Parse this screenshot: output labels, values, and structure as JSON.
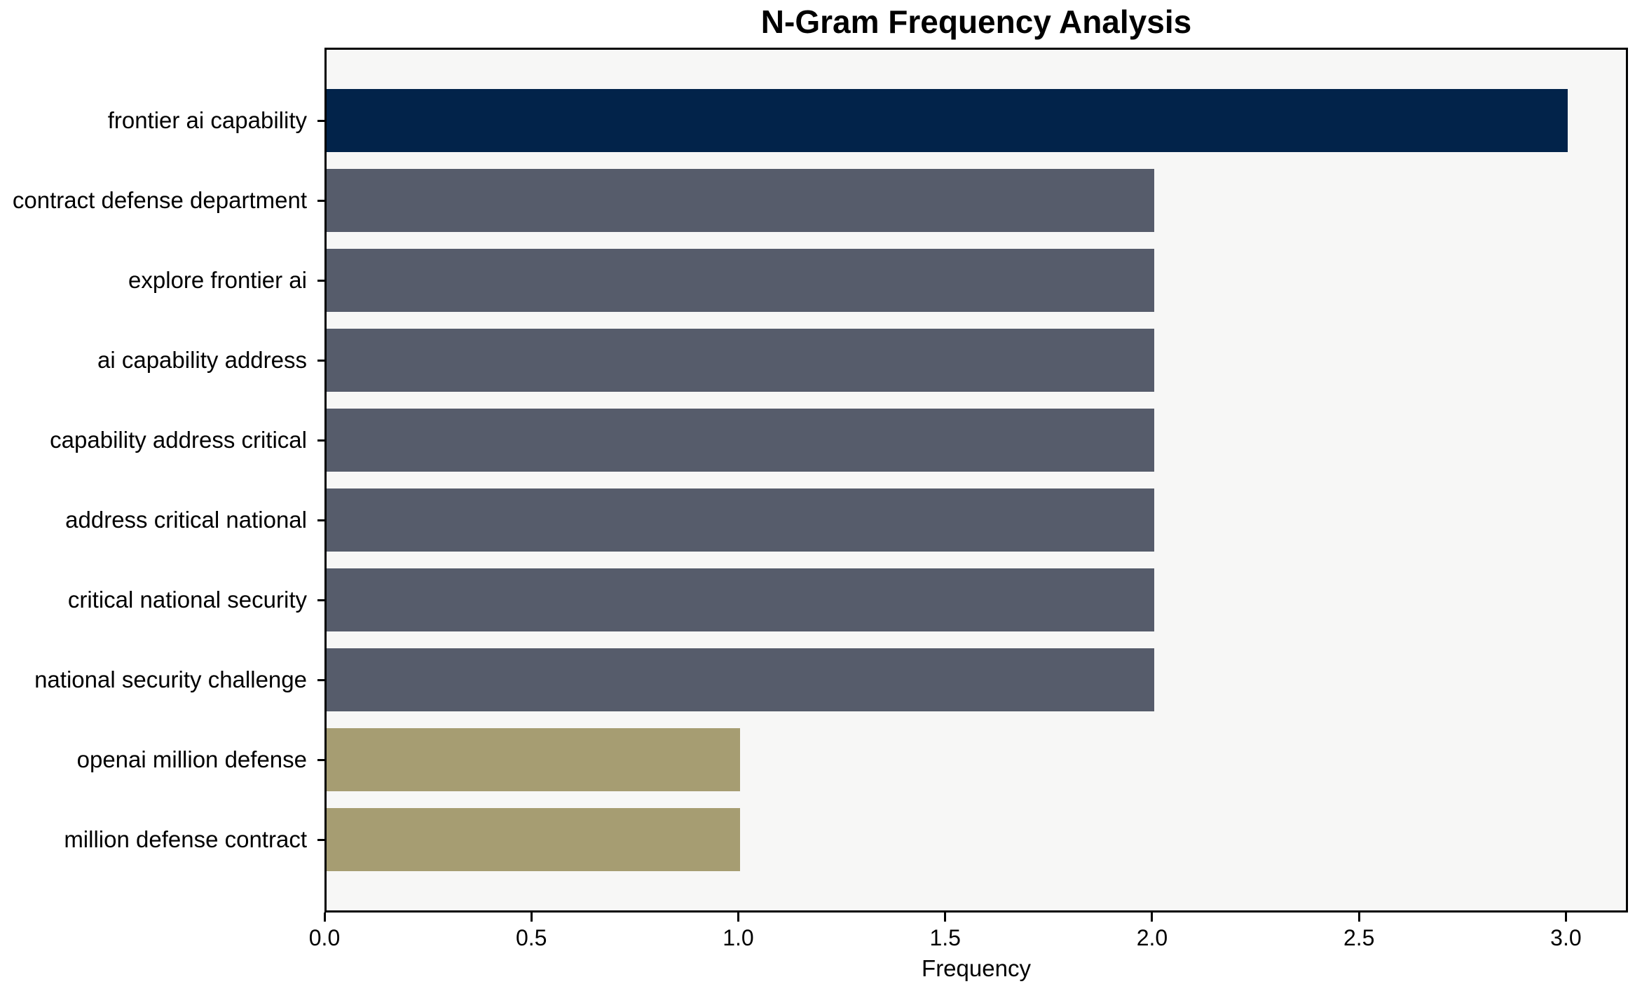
{
  "chart_data": {
    "type": "bar",
    "orientation": "horizontal",
    "title": "N-Gram Frequency Analysis",
    "xlabel": "Frequency",
    "ylabel": "",
    "categories": [
      "frontier ai capability",
      "contract defense department",
      "explore frontier ai",
      "ai capability address",
      "capability address critical",
      "address critical national",
      "critical national security",
      "national security challenge",
      "openai million defense",
      "million defense contract"
    ],
    "values": [
      3,
      2,
      2,
      2,
      2,
      2,
      2,
      2,
      1,
      1
    ],
    "colors": [
      "#02234a",
      "#565c6b",
      "#565c6b",
      "#565c6b",
      "#565c6b",
      "#565c6b",
      "#565c6b",
      "#565c6b",
      "#a69d72",
      "#a69d72"
    ],
    "xlim": [
      0,
      3.15
    ],
    "xticks": [
      {
        "value": 0.0,
        "label": "0.0"
      },
      {
        "value": 0.5,
        "label": "0.5"
      },
      {
        "value": 1.0,
        "label": "1.0"
      },
      {
        "value": 1.5,
        "label": "1.5"
      },
      {
        "value": 2.0,
        "label": "2.0"
      },
      {
        "value": 2.5,
        "label": "2.5"
      },
      {
        "value": 3.0,
        "label": "3.0"
      }
    ],
    "grid": false,
    "legend": null,
    "plot_background": "#f7f7f6",
    "axis_color": "#000000"
  }
}
